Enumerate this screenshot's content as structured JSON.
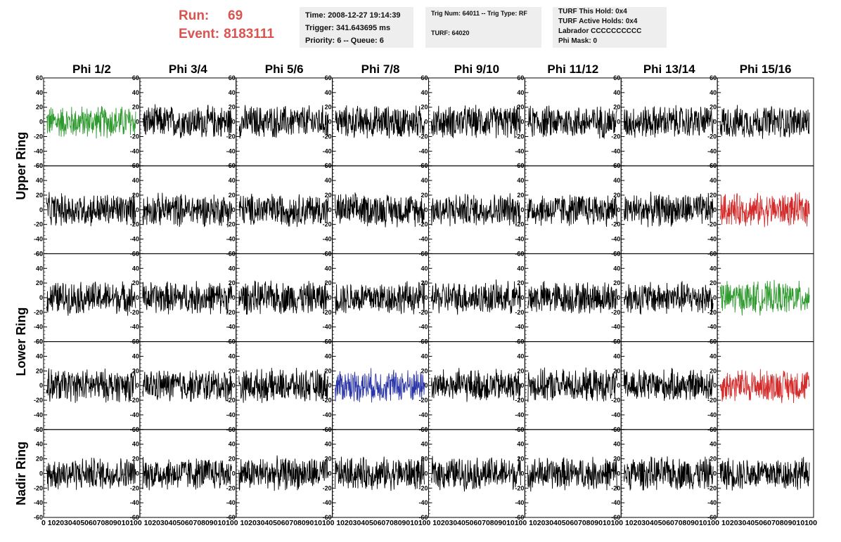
{
  "header": {
    "run_label": "Run:",
    "run_value": "69",
    "event_label": "Event:",
    "event_value": "8183111",
    "info1": [
      "Time: 2008-12-27 19:14:39",
      "Trigger: 341.643695 ms",
      "Priority: 6 -- Queue: 6"
    ],
    "info2_line1": "Trig Num: 64011 -- Trig Type: RF",
    "info2_line2": "TURF: 64020",
    "info3": [
      "TURF This Hold: 0x4",
      "TURF Active Holds: 0x4",
      "Labrador CCCCCCCCCC",
      "Phi Mask: 0"
    ]
  },
  "chart_data": {
    "type": "line",
    "columns": [
      "Phi 1/2",
      "Phi 3/4",
      "Phi 5/6",
      "Phi 7/8",
      "Phi 9/10",
      "Phi 11/12",
      "Phi 13/14",
      "Phi 15/16"
    ],
    "row_labels": [
      {
        "text": "Upper Ring",
        "rows": [
          0,
          1
        ]
      },
      {
        "text": "Lower Ring",
        "rows": [
          2,
          3
        ]
      },
      {
        "text": "Nadir Ring",
        "rows": [
          4
        ]
      }
    ],
    "xlim": [
      0,
      100
    ],
    "ylim": [
      -60,
      60
    ],
    "y_ticks": [
      -60,
      -40,
      -20,
      0,
      20,
      40,
      60
    ],
    "x_tick_labels": [
      "0",
      "10",
      "20",
      "30",
      "40",
      "50",
      "60",
      "70",
      "80",
      "90",
      "100"
    ],
    "x_tick_label_string": "0 1020304050607080901010",
    "last_x_tick_label": "100",
    "trace_amplitude": 25,
    "colors": {
      "default": "#000000",
      "green": "#2e9a2e",
      "red": "#d42a2a",
      "blue": "#2b35a8"
    },
    "highlights": [
      {
        "row": 0,
        "col": 0,
        "color": "green"
      },
      {
        "row": 1,
        "col": 7,
        "color": "red"
      },
      {
        "row": 2,
        "col": 7,
        "color": "green"
      },
      {
        "row": 3,
        "col": 3,
        "color": "blue"
      },
      {
        "row": 3,
        "col": 7,
        "color": "red"
      }
    ]
  }
}
